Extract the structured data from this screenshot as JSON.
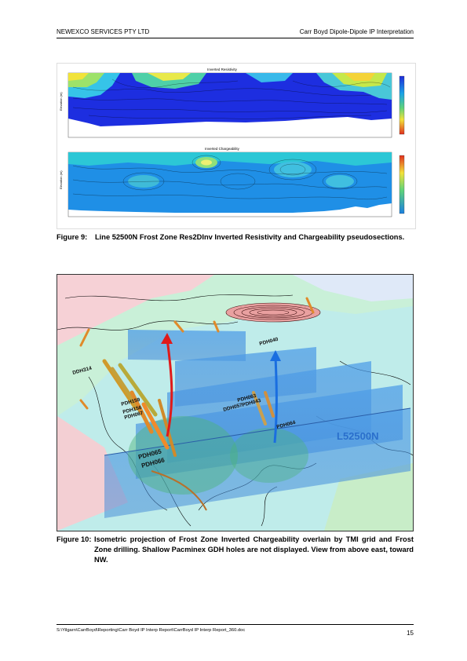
{
  "header": {
    "company": "NEWEXCO SERVICES PTY LTD",
    "report_title": "Carr Boyd Dipole-Dipole IP Interpretation"
  },
  "figure9": {
    "panel1_title": "Inverted Resistivity",
    "panel2_title": "Inverted Chargeability",
    "axis_label": "Elevation (m)",
    "caption_number": "Figure 9:",
    "caption_text": "Line 52500N Frost Zone Res2DInv Inverted Resistivity and Chargeability pseudosections."
  },
  "figure10": {
    "line_label": "L52500N",
    "hole_labels": [
      "PDH065",
      "PDH066",
      "PDH064",
      "PDH063",
      "PDH043",
      "PDH040",
      "DDH057",
      "PDH159",
      "PDH156",
      "PDH067",
      "DDH314"
    ],
    "caption_number": "Figure 10:",
    "caption_text": "Isometric projection of Frost Zone Inverted Chargeability overlain by TMI grid and Frost Zone drilling. Shallow Pacminex GDH holes are not displayed. View from above east, toward NW."
  },
  "footer": {
    "path": "S:\\Yilgarn\\CarrBoyd\\Reporting\\Carr Boyd IP Interp Report\\CarrBoyd IP Interp Report_360.doc",
    "page_number": "15"
  }
}
